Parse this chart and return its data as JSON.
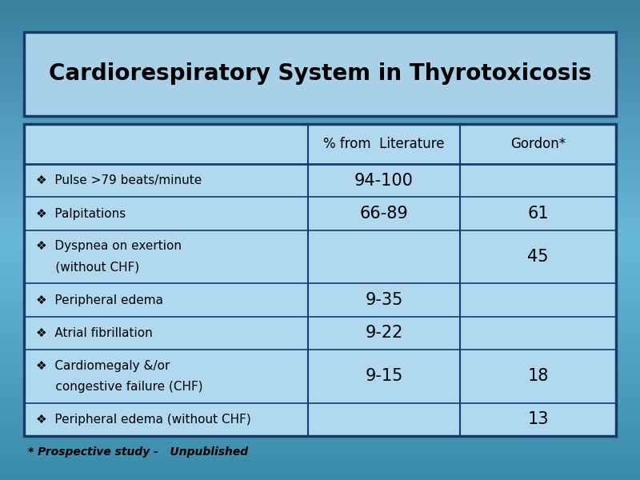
{
  "title": "Cardiorespiratory System in Thyrotoxicosis",
  "col_headers": [
    "% from  Literature",
    "Gordon*"
  ],
  "rows": [
    {
      "label_lines": [
        "❖  Pulse >79 beats/minute"
      ],
      "lit": "94-100",
      "gordon": ""
    },
    {
      "label_lines": [
        "❖  Palpitations"
      ],
      "lit": "66-89",
      "gordon": "61"
    },
    {
      "label_lines": [
        "❖  Dyspnea on exertion",
        "     (without CHF)"
      ],
      "lit": "",
      "gordon": "45"
    },
    {
      "label_lines": [
        "❖  Peripheral edema"
      ],
      "lit": "9-35",
      "gordon": ""
    },
    {
      "label_lines": [
        "❖  Atrial fibrillation"
      ],
      "lit": "9-22",
      "gordon": ""
    },
    {
      "label_lines": [
        "❖  Cardiomegaly &/or",
        "     congestive failure (CHF)"
      ],
      "lit": "9-15",
      "gordon": "18"
    },
    {
      "label_lines": [
        "❖  Peripheral edema (without CHF)"
      ],
      "lit": "",
      "gordon": "13"
    }
  ],
  "footnote": "* Prospective study -   Unpublished",
  "bg_color_top": "#3a7fa0",
  "bg_color_mid": "#6ab8d8",
  "bg_color_bot": "#3a8aaa",
  "title_box_color": "#a8d0e8",
  "table_bg_color": "#b0d8ee",
  "border_color": "#1a3a6e",
  "title_font_size": 20,
  "header_font_size": 12,
  "cell_font_size": 11,
  "data_font_size": 15,
  "footnote_font_size": 10,
  "fig_width": 8.0,
  "fig_height": 6.0,
  "dpi": 100
}
